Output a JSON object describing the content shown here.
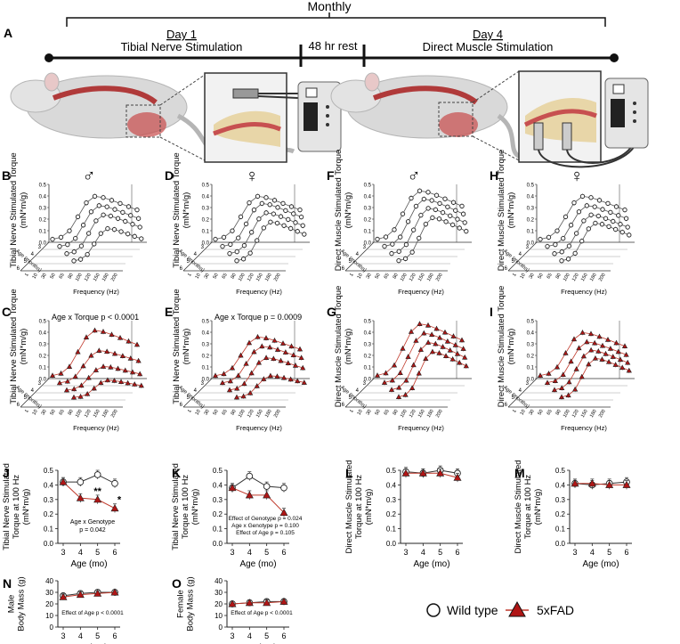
{
  "timeline": {
    "monthly": "Monthly",
    "day1": "Day 1",
    "day1_desc": "Tibial Nerve Stimulation",
    "rest": "48 hr rest",
    "day4": "Day 4",
    "day4_desc": "Direct Muscle Stimulation",
    "panel": "A"
  },
  "surface_common": {
    "x_ticks": [
      "1",
      "10",
      "30",
      "50",
      "65",
      "80",
      "100",
      "120",
      "150",
      "180",
      "200"
    ],
    "xlabel": "Frequency (Hz)",
    "age_ticks": [
      "3",
      "4",
      "5",
      "6"
    ],
    "age_label": "Age (months)",
    "y_ticks": [
      "0.0",
      "0.1",
      "0.2",
      "0.3",
      "0.4",
      "0.5"
    ]
  },
  "chart_data": [
    {
      "panel": "B",
      "type": "line",
      "title": "",
      "sex_symbol": "♂",
      "ylabel": "Tibial Nerve Stimulated Torque (mN*m/g)",
      "genotype": "Wild type",
      "annotation": "",
      "peaks": [
        0.4,
        0.38,
        0.36,
        0.3
      ]
    },
    {
      "panel": "D",
      "type": "line",
      "title": "",
      "sex_symbol": "♀",
      "ylabel": "Tibial Nerve Stimulated Torque (mN*m/g)",
      "genotype": "Wild type",
      "annotation": "",
      "peaks": [
        0.4,
        0.4,
        0.38,
        0.36
      ]
    },
    {
      "panel": "F",
      "type": "line",
      "title": "",
      "sex_symbol": "♂",
      "ylabel": "Direct Muscle Stimulated Torque (mN*m/g)",
      "genotype": "Wild type",
      "annotation": "",
      "peaks": [
        0.45,
        0.44,
        0.42,
        0.4
      ]
    },
    {
      "panel": "H",
      "type": "line",
      "title": "",
      "sex_symbol": "♀",
      "ylabel": "Direct Muscle Stimulated Torque (mN*m/g)",
      "genotype": "Wild type",
      "annotation": "",
      "peaks": [
        0.4,
        0.38,
        0.36,
        0.35
      ]
    },
    {
      "panel": "C",
      "type": "line",
      "title": "",
      "sex_symbol": "",
      "ylabel": "Tibial Nerve Stimulated Torque (mN*m/g)",
      "genotype": "5xFAD",
      "annotation": "Age x Torque p < 0.0001",
      "peaks": [
        0.42,
        0.3,
        0.22,
        0.16
      ]
    },
    {
      "panel": "E",
      "type": "line",
      "title": "",
      "sex_symbol": "",
      "ylabel": "Tibial Nerve Stimulated Torque (mN*m/g)",
      "genotype": "5xFAD",
      "annotation": "Age x Torque p = 0.0009",
      "peaks": [
        0.36,
        0.34,
        0.3,
        0.2
      ]
    },
    {
      "panel": "G",
      "type": "line",
      "title": "",
      "sex_symbol": "",
      "ylabel": "Direct Muscle Stimulated Torque (mN*m/g)",
      "genotype": "5xFAD",
      "annotation": "",
      "peaks": [
        0.48,
        0.46,
        0.44,
        0.42
      ]
    },
    {
      "panel": "I",
      "type": "line",
      "title": "",
      "sex_symbol": "",
      "ylabel": "Direct Muscle Stimulated Torque (mN*m/g)",
      "genotype": "5xFAD",
      "annotation": "",
      "peaks": [
        0.4,
        0.38,
        0.37,
        0.36
      ]
    },
    {
      "panel": "J",
      "type": "line",
      "ylabel": "Tibial Nerve Stimulated Torque at 100 Hz (mN*m/g)",
      "xlabel": "Age (mo)",
      "x": [
        3,
        4,
        5,
        6
      ],
      "ylim": [
        0,
        0.5
      ],
      "y_ticks": [
        "0.0",
        "0.1",
        "0.2",
        "0.3",
        "0.4",
        "0.5"
      ],
      "series": [
        {
          "name": "Wild type",
          "values": [
            0.42,
            0.42,
            0.47,
            0.41
          ]
        },
        {
          "name": "5xFAD",
          "values": [
            0.42,
            0.31,
            0.3,
            0.24
          ]
        }
      ],
      "stars": [
        {
          "x": 5,
          "label": "**"
        },
        {
          "x": 6,
          "label": "*"
        }
      ],
      "annotations": [
        "Age x Genotype",
        "p = 0.042"
      ]
    },
    {
      "panel": "K",
      "type": "line",
      "ylabel": "Tibial Nerve Stimulated Torque at 100 Hz (mN*m/g)",
      "xlabel": "Age (mo)",
      "x": [
        3,
        4,
        5,
        6
      ],
      "ylim": [
        0,
        0.5
      ],
      "y_ticks": [
        "0.0",
        "0.1",
        "0.2",
        "0.3",
        "0.4",
        "0.5"
      ],
      "series": [
        {
          "name": "Wild type",
          "values": [
            0.38,
            0.46,
            0.39,
            0.38
          ]
        },
        {
          "name": "5xFAD",
          "values": [
            0.38,
            0.33,
            0.33,
            0.21
          ]
        }
      ],
      "stars": [],
      "annotations": [
        "Effect of Genotype p = 0.024",
        "Age x Genotype p = 0.100",
        "Effect of Age p = 0.105"
      ]
    },
    {
      "panel": "L",
      "type": "line",
      "ylabel": "Direct Muscle Stimulated Torque at 100 Hz (mN*m/g)",
      "xlabel": "Age (mo)",
      "x": [
        3,
        4,
        5,
        6
      ],
      "ylim": [
        0,
        0.5
      ],
      "y_ticks": [
        "0.0",
        "0.1",
        "0.2",
        "0.3",
        "0.4",
        "0.5"
      ],
      "series": [
        {
          "name": "Wild type",
          "values": [
            0.49,
            0.48,
            0.5,
            0.48
          ]
        },
        {
          "name": "5xFAD",
          "values": [
            0.48,
            0.48,
            0.48,
            0.45
          ]
        }
      ],
      "stars": [],
      "annotations": []
    },
    {
      "panel": "M",
      "type": "line",
      "ylabel": "Direct Muscle Stimulated Torque at 100 Hz (mN*m/g)",
      "xlabel": "Age (mo)",
      "x": [
        3,
        4,
        5,
        6
      ],
      "ylim": [
        0,
        0.5
      ],
      "y_ticks": [
        "0.0",
        "0.1",
        "0.2",
        "0.3",
        "0.4",
        "0.5"
      ],
      "series": [
        {
          "name": "Wild type",
          "values": [
            0.41,
            0.4,
            0.41,
            0.42
          ]
        },
        {
          "name": "5xFAD",
          "values": [
            0.41,
            0.41,
            0.4,
            0.4
          ]
        }
      ],
      "stars": [],
      "annotations": []
    },
    {
      "panel": "N",
      "type": "line",
      "ylabel": "Male Body Mass (g)",
      "xlabel": "Age (mo)",
      "x": [
        3,
        4,
        5,
        6
      ],
      "ylim": [
        0,
        40
      ],
      "y_ticks": [
        "0",
        "10",
        "20",
        "30",
        "40"
      ],
      "series": [
        {
          "name": "Wild type",
          "values": [
            27,
            29,
            30,
            30
          ]
        },
        {
          "name": "5xFAD",
          "values": [
            26,
            28,
            29,
            30
          ]
        }
      ],
      "stars": [],
      "annotations": [
        "Effect of Age p < 0.0001"
      ]
    },
    {
      "panel": "O",
      "type": "line",
      "ylabel": "Female Body Mass (g)",
      "xlabel": "Age (mo)",
      "x": [
        3,
        4,
        5,
        6
      ],
      "ylim": [
        0,
        40
      ],
      "y_ticks": [
        "0",
        "10",
        "20",
        "30",
        "40"
      ],
      "series": [
        {
          "name": "Wild type",
          "values": [
            20,
            21,
            22,
            22
          ]
        },
        {
          "name": "5xFAD",
          "values": [
            20,
            21,
            21,
            22
          ]
        }
      ],
      "stars": [],
      "annotations": [
        "Effect of Age p < 0.0001"
      ]
    }
  ],
  "legend": {
    "wild_type": "Wild type",
    "fad": "5xFAD"
  },
  "colors": {
    "wt_fill": "#ffffff",
    "fad_fill": "#b01515",
    "fad_line": "#c0392b",
    "line": "#222222"
  }
}
